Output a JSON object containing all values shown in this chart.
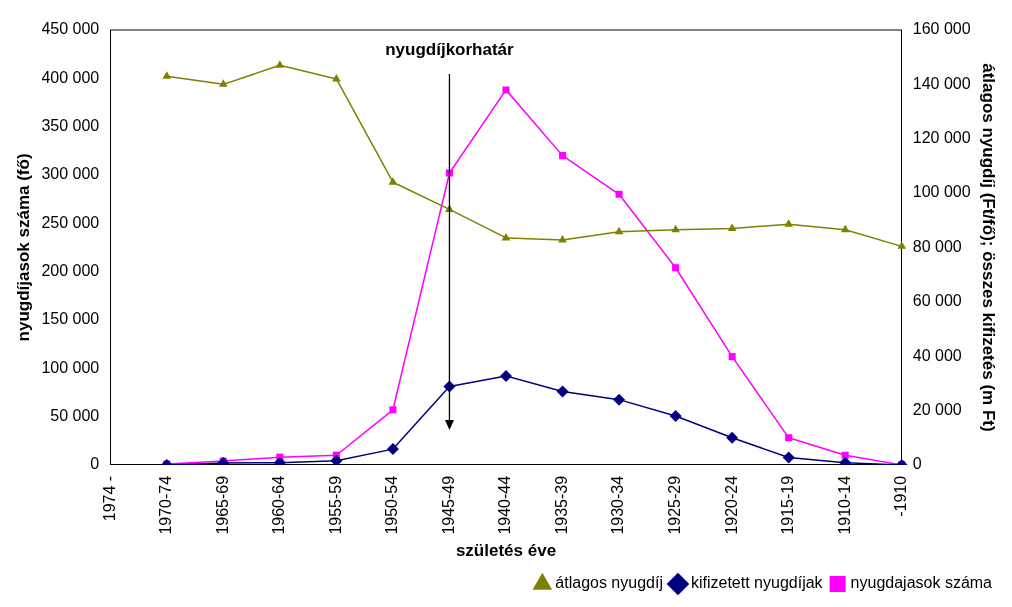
{
  "chart_data": {
    "type": "line",
    "xlabel": "születés éve",
    "ylabel": "nyugdíjasok száma (fő)",
    "y2label": "átlagos nyugdíj (Ft/fő); összes kifizetés (m Ft)",
    "categories": [
      "1974 -",
      "1970-74",
      "1965-69",
      "1960-64",
      "1955-59",
      "1950-54",
      "1945-49",
      "1940-44",
      "1935-39",
      "1930-34",
      "1925-29",
      "1920-24",
      "1915-19",
      "1910-14",
      "-1910"
    ],
    "series": [
      {
        "name": "nyugdajasok száma",
        "color": "#ff00ff",
        "marker": "square",
        "values": [
          null,
          1000,
          4000,
          8000,
          10000,
          57000,
          302000,
          388000,
          320000,
          280000,
          204000,
          112000,
          28000,
          10000,
          0
        ]
      },
      {
        "name": "kifizetett nyugdíjak",
        "color": "#000080",
        "marker": "diamond",
        "axis": "y2",
        "values": [
          null,
          0,
          700,
          800,
          1500,
          5800,
          28800,
          32700,
          27000,
          24000,
          18000,
          10000,
          2700,
          800,
          0
        ]
      },
      {
        "name": "átlagos nyugdíj",
        "color": "#808000",
        "marker": "triangle",
        "axis": "y2",
        "values": [
          null,
          143000,
          140000,
          147000,
          142000,
          104000,
          94000,
          83500,
          82700,
          85800,
          86500,
          87000,
          88500,
          86500,
          80400
        ]
      }
    ],
    "ylim": [
      0,
      450000
    ],
    "yticks": [
      {
        "value": 0,
        "label": "0"
      },
      {
        "value": 50000,
        "label": "50 000"
      },
      {
        "value": 100000,
        "label": "100 000"
      },
      {
        "value": 150000,
        "label": "150 000"
      },
      {
        "value": 200000,
        "label": "200 000"
      },
      {
        "value": 250000,
        "label": "250 000"
      },
      {
        "value": 300000,
        "label": "300 000"
      },
      {
        "value": 350000,
        "label": "350 000"
      },
      {
        "value": 400000,
        "label": "400 000"
      },
      {
        "value": 450000,
        "label": "450 000"
      }
    ],
    "y2lim": [
      0,
      160000
    ],
    "y2ticks": [
      {
        "value": 0,
        "label": "0"
      },
      {
        "value": 20000,
        "label": "20 000"
      },
      {
        "value": 40000,
        "label": "40 000"
      },
      {
        "value": 60000,
        "label": "60 000"
      },
      {
        "value": 80000,
        "label": "80 000"
      },
      {
        "value": 100000,
        "label": "100 000"
      },
      {
        "value": 120000,
        "label": "120 000"
      },
      {
        "value": 140000,
        "label": "140 000"
      },
      {
        "value": 160000,
        "label": "160 000"
      }
    ],
    "ref_lines": [
      {
        "axis": "x",
        "value": "1945-49",
        "label": "nyugdíjkorhatár",
        "color": "#000000"
      }
    ],
    "grid": false,
    "legend": "bottom right",
    "line_style": "solid"
  }
}
